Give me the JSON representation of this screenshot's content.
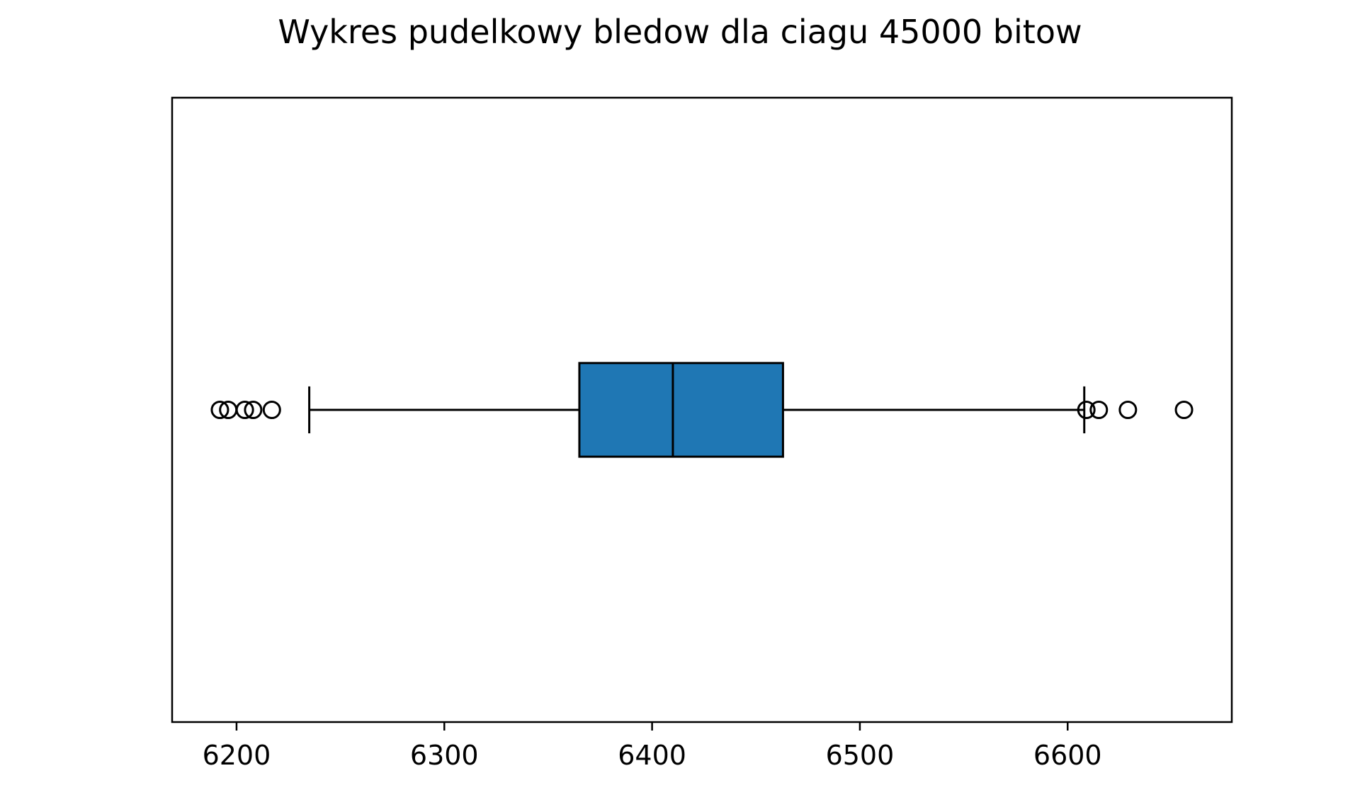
{
  "chart_data": {
    "type": "boxplot",
    "title": "Wykres pudelkowy bledow dla ciagu 45000 bitow",
    "orientation": "horizontal",
    "xlabel": "",
    "ylabel": "",
    "xlim": [
      6169,
      6679
    ],
    "xticks": [
      6200,
      6300,
      6400,
      6500,
      6600
    ],
    "grid": false,
    "box_color": "#1f77b4",
    "line_color": "#000000",
    "stats": {
      "whisker_low": 6235,
      "q1": 6365,
      "median": 6410,
      "q3": 6463,
      "whisker_high": 6608
    },
    "outliers": [
      6192,
      6196,
      6204,
      6208,
      6217,
      6609,
      6615,
      6629,
      6656
    ]
  }
}
